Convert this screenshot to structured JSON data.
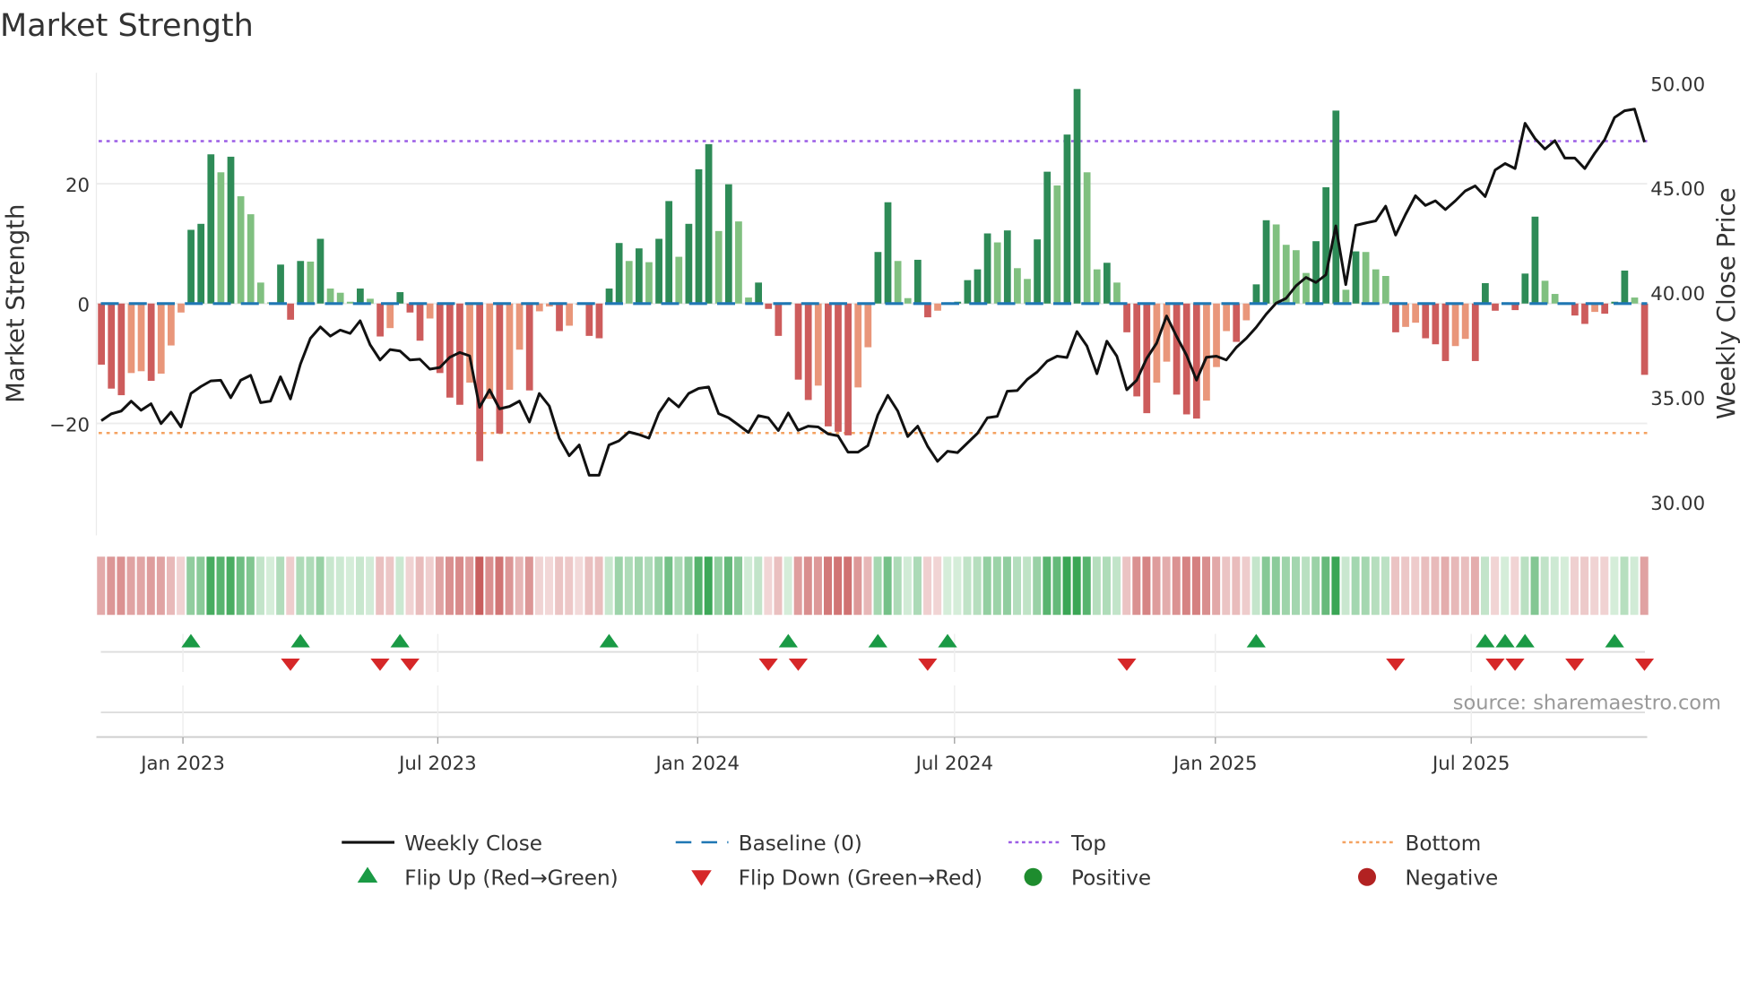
{
  "title": "Market Strength",
  "source": "source: sharemaestro.com",
  "colors": {
    "pos_strong": "#2e8b57",
    "pos_weak": "#80c080",
    "neg_strong": "#cd5c5c",
    "neg_weak": "#e9967a",
    "baseline": "#1f77b4",
    "top": "#9b5de5",
    "bottom": "#f4a261",
    "close": "#111111",
    "flip_up": "#1a9a45",
    "flip_down": "#d62728",
    "positive": "#1e8c2e",
    "negative": "#b22222"
  },
  "chart_data": {
    "type": "bar",
    "title": "Market Strength",
    "ylabel": "Market Strength",
    "y2label": "Weekly Close Price",
    "ylim": [
      -38.7,
      38.5
    ],
    "y2lim": [
      28.4,
      50.5
    ],
    "yticks": [
      {
        "v": 20,
        "label": "20"
      },
      {
        "v": 0,
        "label": "0"
      },
      {
        "v": -20,
        "label": "−20"
      }
    ],
    "y2ticks": [
      {
        "v": 50,
        "label": "50.00"
      },
      {
        "v": 45,
        "label": "45.00"
      },
      {
        "v": 40,
        "label": "40.00"
      },
      {
        "v": 35,
        "label": "35.00"
      },
      {
        "v": 30,
        "label": "30.00"
      }
    ],
    "xticks": [
      {
        "i": 8.2,
        "label": "Jan 2023"
      },
      {
        "i": 33.8,
        "label": "Jul 2023"
      },
      {
        "i": 59.9,
        "label": "Jan 2024"
      },
      {
        "i": 85.7,
        "label": "Jul 2024"
      },
      {
        "i": 111.9,
        "label": "Jan 2025"
      },
      {
        "i": 137.6,
        "label": "Jul 2025"
      }
    ],
    "top_level": 27.1,
    "bottom_level": -21.6,
    "strength": [
      -10.2,
      -14.2,
      -15.3,
      -11.6,
      -11.3,
      -12.9,
      -11.7,
      -7.0,
      -1.5,
      12.3,
      13.3,
      24.9,
      21.9,
      24.5,
      17.9,
      14.9,
      3.5,
      0.2,
      6.5,
      -2.7,
      7.1,
      7.0,
      10.8,
      2.5,
      1.8,
      0.3,
      2.5,
      0.8,
      -5.5,
      -4.1,
      1.9,
      -1.5,
      -6.2,
      -2.5,
      -11.6,
      -15.7,
      -16.9,
      -13.2,
      -26.3,
      -15.9,
      -21.7,
      -14.4,
      -7.7,
      -14.5,
      -1.3,
      -0.5,
      -4.6,
      -3.7,
      -0.2,
      -5.4,
      -5.8,
      2.5,
      10.1,
      7.1,
      9.2,
      6.9,
      10.8,
      17.1,
      7.8,
      13.3,
      22.4,
      26.6,
      12.1,
      19.9,
      13.7,
      1.0,
      3.5,
      -0.9,
      -5.4,
      0.2,
      -12.7,
      -16.1,
      -13.7,
      -20.5,
      -21.4,
      -22.0,
      -14.0,
      -7.3,
      8.6,
      16.9,
      7.1,
      0.9,
      7.3,
      -2.3,
      -1.2,
      0.2,
      0.3,
      3.9,
      5.7,
      11.7,
      10.2,
      12.2,
      5.9,
      4.1,
      10.7,
      22.0,
      19.7,
      28.2,
      35.8,
      21.9,
      5.7,
      6.8,
      3.5,
      -4.8,
      -15.5,
      -18.3,
      -13.2,
      -9.7,
      -15.2,
      -18.5,
      -19.2,
      -16.2,
      -10.6,
      -4.6,
      -6.4,
      -2.8,
      3.2,
      13.9,
      13.2,
      9.8,
      8.9,
      5.1,
      10.4,
      19.4,
      32.2,
      2.3,
      8.7,
      8.6,
      5.7,
      4.6,
      -4.8,
      -3.9,
      -3.2,
      -5.8,
      -6.8,
      -9.6,
      -7.1,
      -5.9,
      -9.6,
      3.4,
      -1.2,
      0.2,
      -1.1,
      5.0,
      14.5,
      3.8,
      1.6,
      0.2,
      -2.0,
      -3.4,
      -1.4,
      -1.7,
      0.3,
      5.5,
      1.0,
      -11.9
    ],
    "close": [
      33.87,
      34.2,
      34.33,
      34.8,
      34.37,
      34.68,
      33.73,
      34.28,
      33.57,
      35.17,
      35.5,
      35.77,
      35.8,
      34.97,
      35.8,
      36.04,
      34.73,
      34.81,
      35.97,
      34.91,
      36.57,
      37.8,
      38.35,
      37.91,
      38.2,
      38.04,
      38.64,
      37.5,
      36.77,
      37.27,
      37.2,
      36.77,
      36.81,
      36.33,
      36.41,
      36.9,
      37.13,
      36.97,
      34.51,
      35.35,
      34.44,
      34.55,
      34.81,
      33.81,
      35.17,
      34.57,
      33.04,
      32.2,
      32.71,
      31.27,
      31.27,
      32.71,
      32.91,
      33.33,
      33.21,
      33.04,
      34.24,
      34.93,
      34.53,
      35.17,
      35.41,
      35.48,
      34.21,
      34.01,
      33.67,
      33.31,
      34.11,
      34.01,
      33.4,
      34.24,
      33.41,
      33.61,
      33.57,
      33.24,
      33.15,
      32.37,
      32.37,
      32.68,
      34.15,
      35.08,
      34.33,
      33.11,
      33.61,
      32.64,
      31.93,
      32.41,
      32.35,
      32.81,
      33.27,
      34.01,
      34.08,
      35.28,
      35.31,
      35.84,
      36.2,
      36.71,
      36.95,
      36.89,
      38.13,
      37.44,
      36.11,
      37.67,
      36.95,
      35.35,
      35.8,
      36.84,
      37.57,
      38.87,
      37.9,
      37.0,
      35.81,
      36.9,
      36.95,
      36.77,
      37.37,
      37.8,
      38.33,
      38.95,
      39.48,
      39.71,
      40.31,
      40.71,
      40.47,
      40.84,
      43.17,
      40.37,
      43.2,
      43.31,
      43.41,
      44.11,
      42.73,
      43.71,
      44.61,
      44.15,
      44.37,
      43.95,
      44.37,
      44.84,
      45.08,
      44.57,
      45.84,
      46.15,
      45.91,
      48.07,
      47.35,
      46.84,
      47.24,
      46.41,
      46.41,
      45.91,
      46.64,
      47.29,
      48.35,
      48.67,
      48.75,
      47.17
    ],
    "legend": [
      {
        "key": "close",
        "label": "Weekly Close"
      },
      {
        "key": "baseline",
        "label": "Baseline (0)"
      },
      {
        "key": "top",
        "label": "Top"
      },
      {
        "key": "bottom",
        "label": "Bottom"
      },
      {
        "key": "flip_up",
        "label": "Flip Up (Red→Green)"
      },
      {
        "key": "flip_down",
        "label": "Flip Down (Green→Red)"
      },
      {
        "key": "positive",
        "label": "Positive"
      },
      {
        "key": "negative",
        "label": "Negative"
      }
    ],
    "legend_placement": "bottom-center",
    "grid": true
  }
}
